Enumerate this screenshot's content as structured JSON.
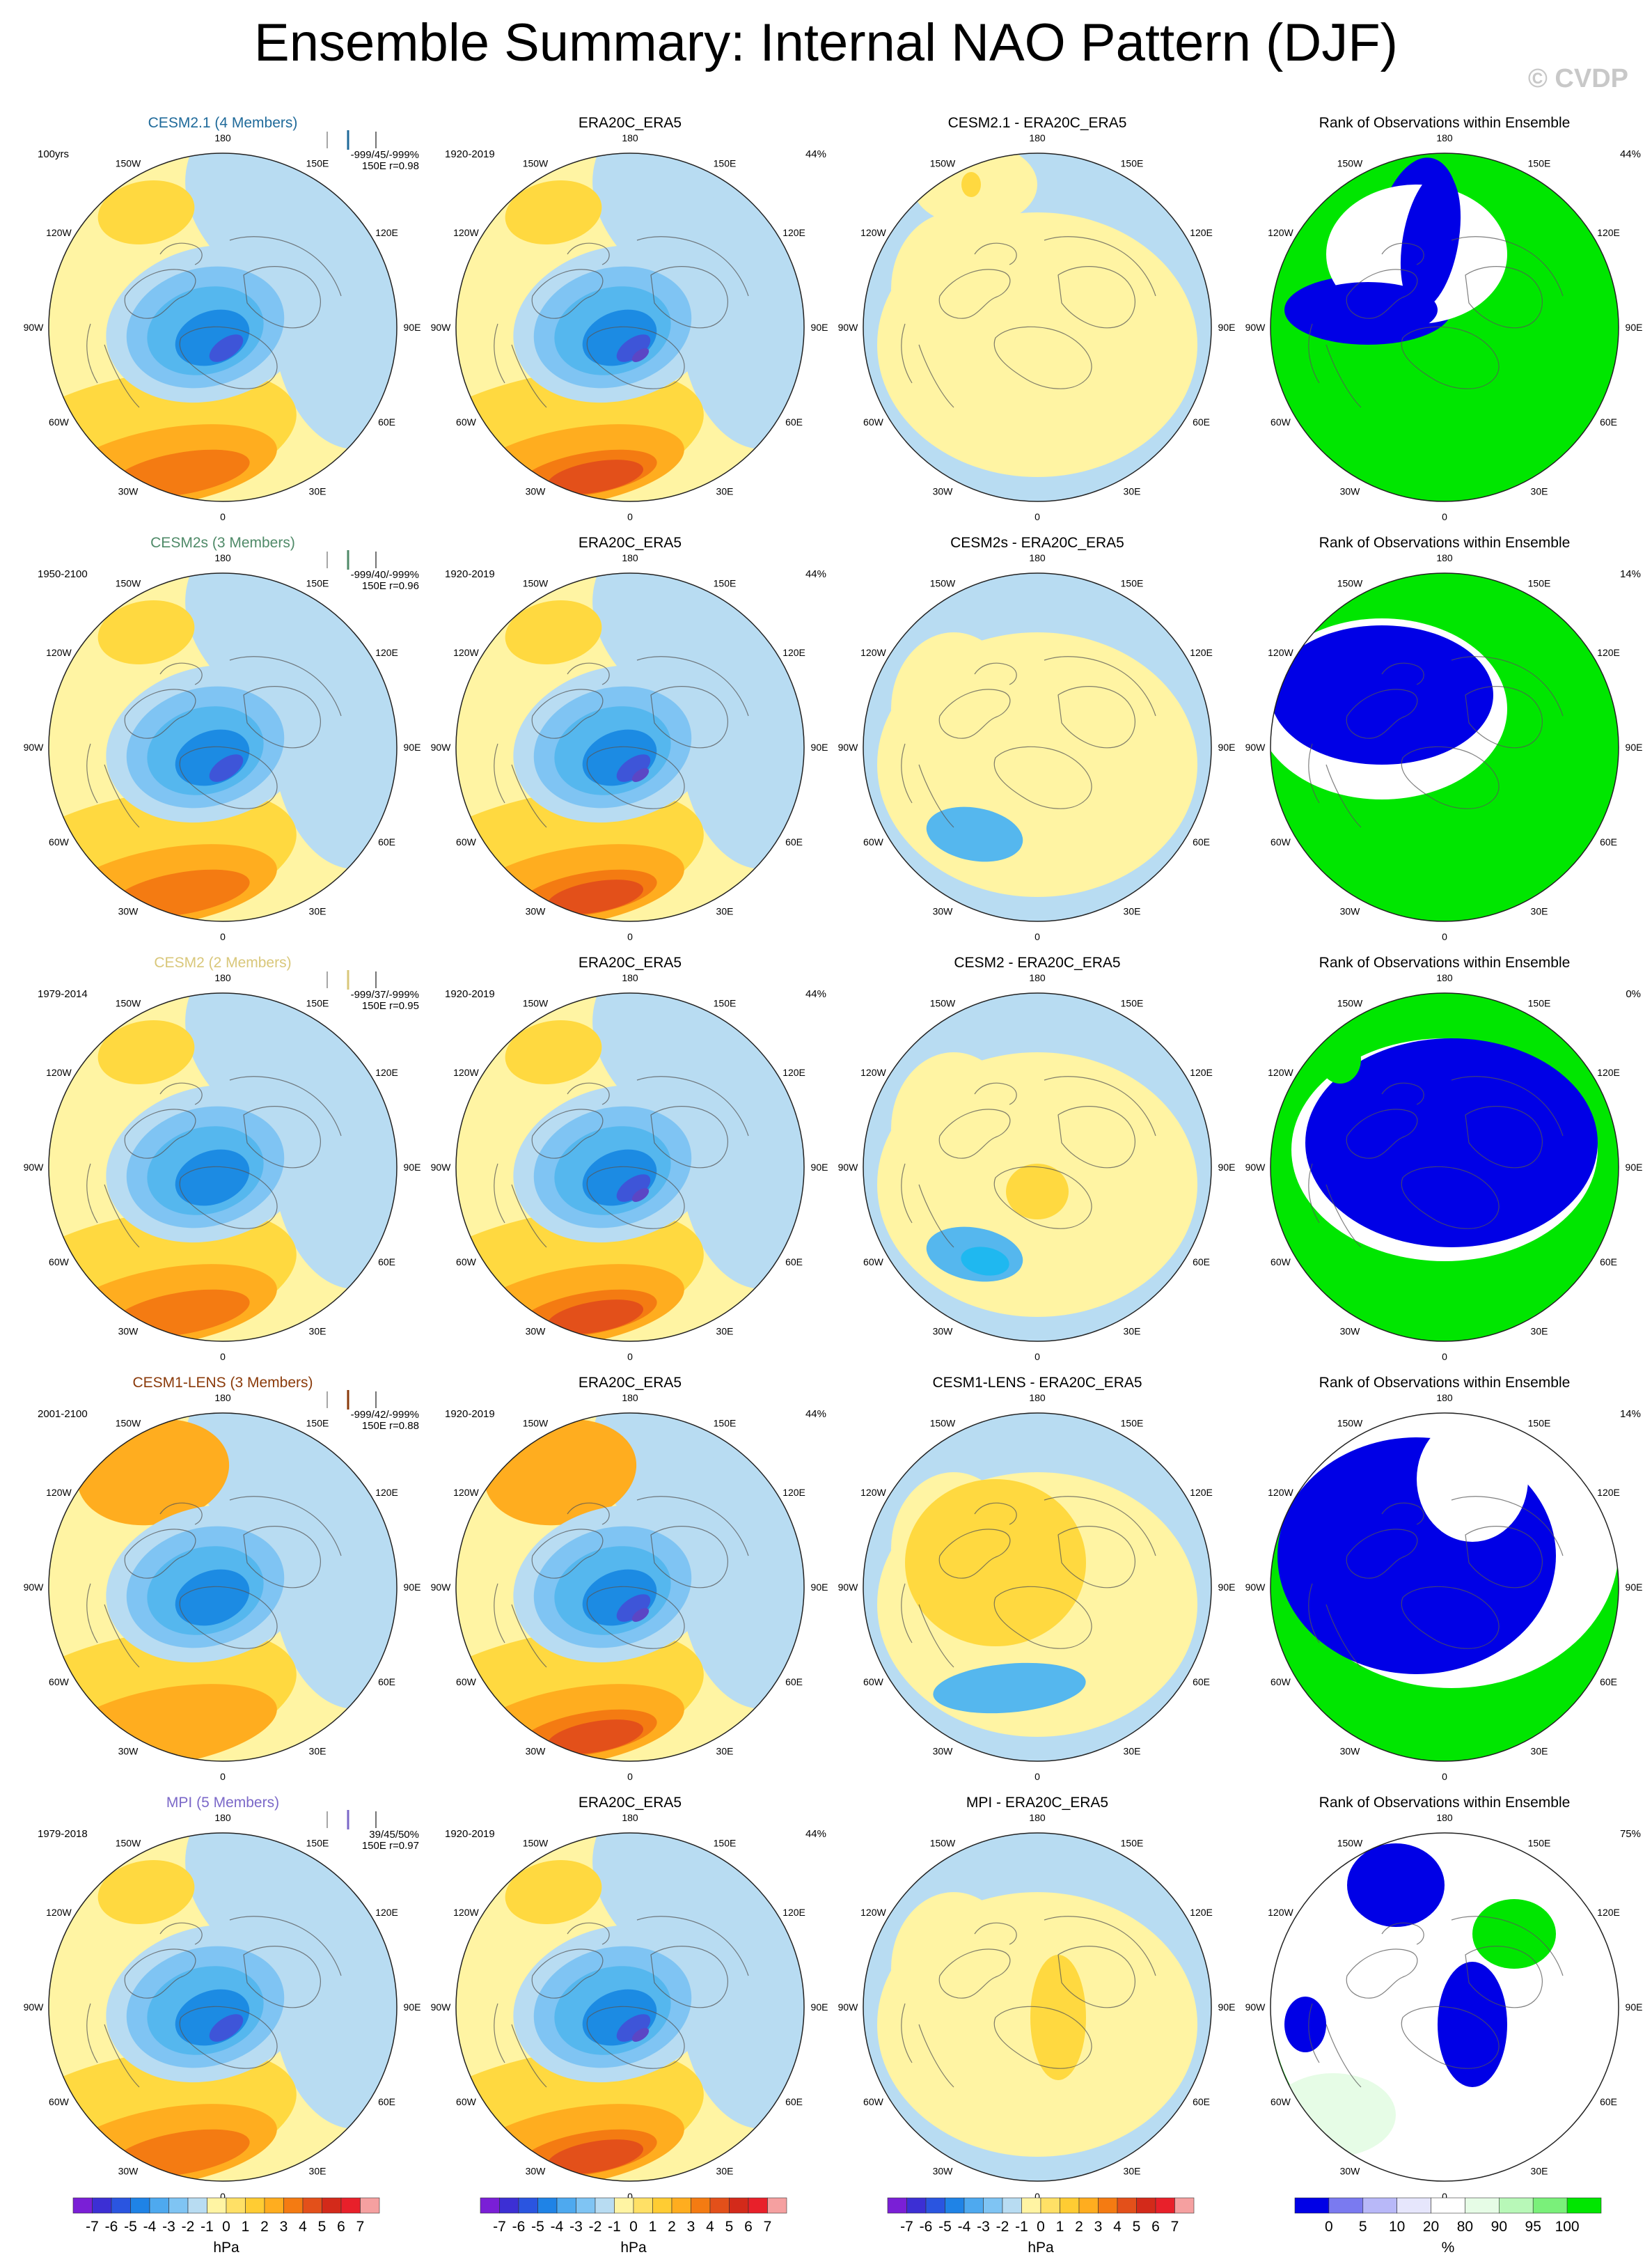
{
  "title": "Ensemble Summary: Internal NAO Pattern (DJF)",
  "watermark": "© CVDP",
  "lon_labels": [
    "180",
    "150E",
    "120E",
    "90E",
    "60E",
    "30E",
    "0",
    "30W",
    "60W",
    "90W",
    "120W",
    "150W"
  ],
  "colors": {
    "pale_yellow": "#fff4a3",
    "yellow": "#ffd940",
    "orange": "#ffad1f",
    "dark_orange": "#f47b12",
    "red_orange": "#e3501a",
    "pale_blue": "#b8dcf2",
    "sky_blue": "#55b7ee",
    "blue": "#1c8be3",
    "dark_blue": "#3e55d8",
    "violet": "#5b46c5",
    "rank_blue": "#0000e6",
    "rank_green": "#00e600",
    "rank_white": "#ffffff"
  },
  "rows": [
    {
      "model": "CESM2.1 (4 Members)",
      "model_color": "#1f6a9a",
      "period": "100yrs",
      "stat1": "-999/45/-999%",
      "stat2": "150E",
      "stat3": "r=0.98",
      "obs_title": "ERA20C_ERA5",
      "obs_period": "1920-2019",
      "obs_pct": "44%",
      "diff_title": "CESM2.1 - ERA20C_ERA5",
      "rank_title": "Rank of Observations within Ensemble",
      "rank_pct": "44%",
      "rank_pattern": "a"
    },
    {
      "model": "CESM2s (3 Members)",
      "model_color": "#4f8a68",
      "period": "1950-2100",
      "stat1": "-999/40/-999%",
      "stat2": "150E",
      "stat3": "r=0.96",
      "obs_title": "ERA20C_ERA5",
      "obs_period": "1920-2019",
      "obs_pct": "44%",
      "diff_title": "CESM2s - ERA20C_ERA5",
      "rank_title": "Rank of Observations within Ensemble",
      "rank_pct": "14%",
      "rank_pattern": "b"
    },
    {
      "model": "CESM2 (2 Members)",
      "model_color": "#d9c77a",
      "period": "1979-2014",
      "stat1": "-999/37/-999%",
      "stat2": "150E",
      "stat3": "r=0.95",
      "obs_title": "ERA20C_ERA5",
      "obs_period": "1920-2019",
      "obs_pct": "44%",
      "diff_title": "CESM2 - ERA20C_ERA5",
      "rank_title": "Rank of Observations within Ensemble",
      "rank_pct": "0%",
      "rank_pattern": "c"
    },
    {
      "model": "CESM1-LENS (3 Members)",
      "model_color": "#8a3a0a",
      "period": "2001-2100",
      "stat1": "-999/42/-999%",
      "stat2": "150E",
      "stat3": "r=0.88",
      "obs_title": "ERA20C_ERA5",
      "obs_period": "1920-2019",
      "obs_pct": "44%",
      "diff_title": "CESM1-LENS - ERA20C_ERA5",
      "rank_title": "Rank of Observations within Ensemble",
      "rank_pct": "14%",
      "rank_pattern": "d"
    },
    {
      "model": "MPI (5 Members)",
      "model_color": "#7b68c8",
      "period": "1979-2018",
      "stat1": "39/45/50%",
      "stat2": "150E",
      "stat3": "r=0.97",
      "obs_title": "ERA20C_ERA5",
      "obs_period": "1920-2019",
      "obs_pct": "44%",
      "diff_title": "MPI - ERA20C_ERA5",
      "rank_title": "Rank of Observations within Ensemble",
      "rank_pct": "75%",
      "rank_pattern": "e"
    }
  ],
  "colorbar_hpa": {
    "labels": [
      "-7",
      "-6",
      "-5",
      "-4",
      "-3",
      "-2",
      "-1",
      "0",
      "1",
      "2",
      "3",
      "4",
      "5",
      "6",
      "7"
    ],
    "colors": [
      "#7a1fd6",
      "#3c2fd4",
      "#2a55e0",
      "#1f83e6",
      "#4ea9ef",
      "#7fc4f3",
      "#b8dcf2",
      "#fff4a3",
      "#ffe066",
      "#ffcc33",
      "#ffad1f",
      "#f47b12",
      "#e3501a",
      "#d32a1a",
      "#e8202a",
      "#f5a0a0"
    ],
    "unit": "hPa"
  },
  "colorbar_rank": {
    "labels": [
      "0",
      "5",
      "10",
      "20",
      "80",
      "90",
      "95",
      "100"
    ],
    "colors": [
      "#0000e6",
      "#7a7af0",
      "#b8b8f8",
      "#e6e6fc",
      "#ffffff",
      "#e6fce6",
      "#b8f8b8",
      "#7af07a",
      "#00e600"
    ],
    "unit": "%"
  }
}
